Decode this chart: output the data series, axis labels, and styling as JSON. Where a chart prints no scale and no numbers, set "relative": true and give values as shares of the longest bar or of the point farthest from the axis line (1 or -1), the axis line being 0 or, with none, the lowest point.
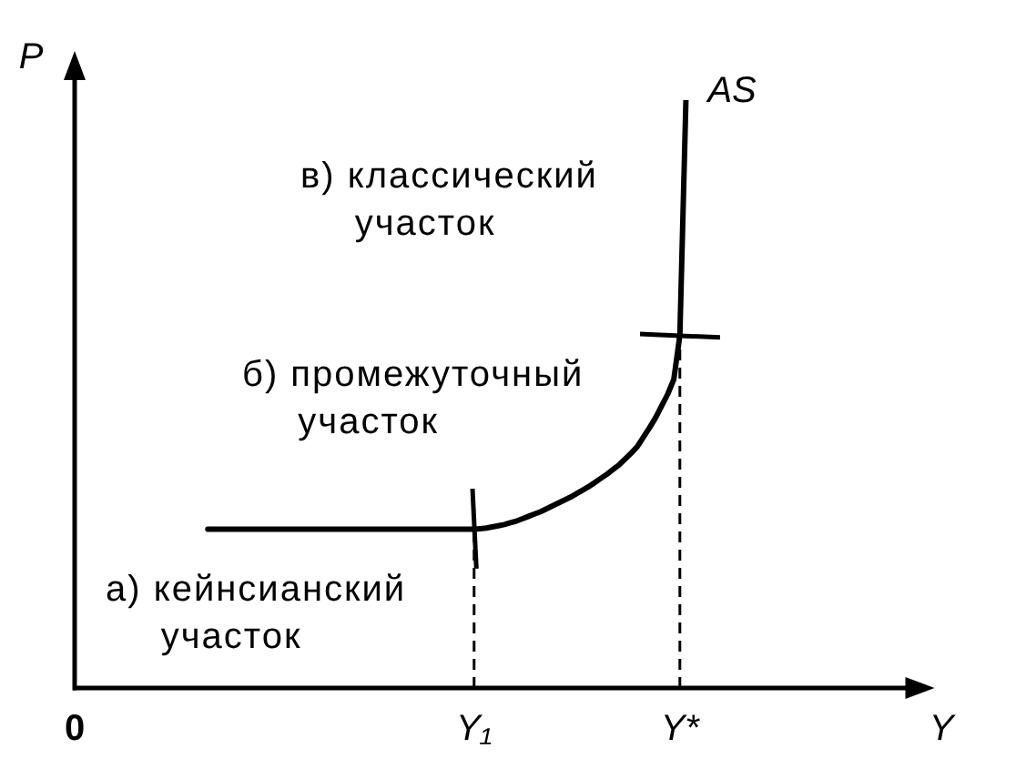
{
  "chart_data": {
    "type": "line",
    "relative": true,
    "xlabel": "Y",
    "ylabel": "P",
    "tick_labels": "x",
    "grid": false,
    "categories": [
      "0",
      null,
      null,
      null,
      null,
      null,
      null,
      null,
      null,
      null,
      null,
      null,
      null,
      null,
      null,
      null,
      null,
      null,
      null,
      null,
      null,
      null,
      null,
      null,
      null,
      null,
      null,
      null,
      null,
      null,
      null,
      null,
      null,
      null,
      null,
      null,
      null,
      null,
      null,
      null,
      null,
      null,
      null,
      null,
      null,
      null,
      null,
      null,
      null,
      null,
      null,
      null,
      null,
      null,
      null,
      null,
      null,
      null,
      null,
      null,
      null,
      null,
      null,
      null,
      null,
      null,
      "Y₁",
      null,
      null,
      null,
      null,
      null,
      null,
      null,
      null,
      null,
      null,
      null,
      null,
      null,
      null,
      null,
      null,
      null,
      null,
      null,
      null,
      null,
      null,
      null,
      null,
      null,
      null,
      null,
      null,
      null,
      null,
      null,
      null,
      null,
      "Y*",
      null,
      null,
      null,
      null,
      null,
      null,
      null,
      null,
      null,
      null,
      null,
      null,
      null,
      null,
      null,
      null,
      null,
      null,
      null,
      null,
      null,
      null,
      null,
      null,
      null,
      null,
      null,
      null,
      null,
      null,
      null,
      null,
      null,
      null,
      null,
      null,
      null,
      null,
      null,
      null,
      null,
      null
    ],
    "series": [
      {
        "name": "AS",
        "color": "#000000",
        "values": [
          null,
          null,
          null,
          null,
          null,
          null,
          null,
          null,
          null,
          null,
          null,
          null,
          null,
          null,
          null,
          null,
          null,
          null,
          null,
          null,
          null,
          null,
          0.27,
          0.27,
          0.27,
          0.27,
          0.27,
          0.27,
          0.27,
          0.27,
          0.27,
          0.27,
          0.27,
          0.27,
          0.27,
          0.27,
          0.27,
          0.27,
          0.27,
          0.27,
          0.27,
          0.27,
          0.27,
          0.27,
          0.27,
          0.27,
          0.27,
          0.27,
          0.27,
          0.27,
          0.27,
          0.27,
          0.27,
          0.27,
          0.27,
          0.27,
          0.27,
          0.27,
          0.27,
          0.27,
          0.27,
          0.27,
          0.27,
          0.27,
          0.27,
          0.27,
          0.27,
          0.271,
          0.272,
          0.274,
          0.276,
          0.278,
          0.281,
          0.284,
          0.288,
          0.292,
          0.296,
          0.3,
          0.305,
          0.31,
          0.315,
          0.32,
          0.325,
          0.331,
          0.337,
          0.343,
          0.35,
          0.357,
          0.364,
          0.372,
          0.38,
          0.39,
          0.4,
          0.411,
          0.427,
          0.443,
          0.46,
          0.48,
          0.5,
          0.525,
          0.6,
          1,
          null,
          null,
          null,
          null,
          null,
          null,
          null,
          null,
          null,
          null,
          null,
          null,
          null,
          null,
          null,
          null,
          null,
          null,
          null,
          null,
          null,
          null,
          null,
          null,
          null,
          null,
          null,
          null,
          null,
          null,
          null,
          null,
          null,
          null,
          null,
          null,
          null,
          null,
          null,
          null,
          null
        ]
      }
    ],
    "ref_lines": [
      {
        "axis": "x",
        "value": "Y₁",
        "color": "#000000",
        "line_style": "dashed"
      },
      {
        "axis": "x",
        "value": "Y*",
        "color": "#000000",
        "line_style": "dashed"
      }
    ],
    "annotations": [
      "в) классический участок",
      "б) промежуточный участок",
      "а) кейнсианский участок"
    ]
  }
}
